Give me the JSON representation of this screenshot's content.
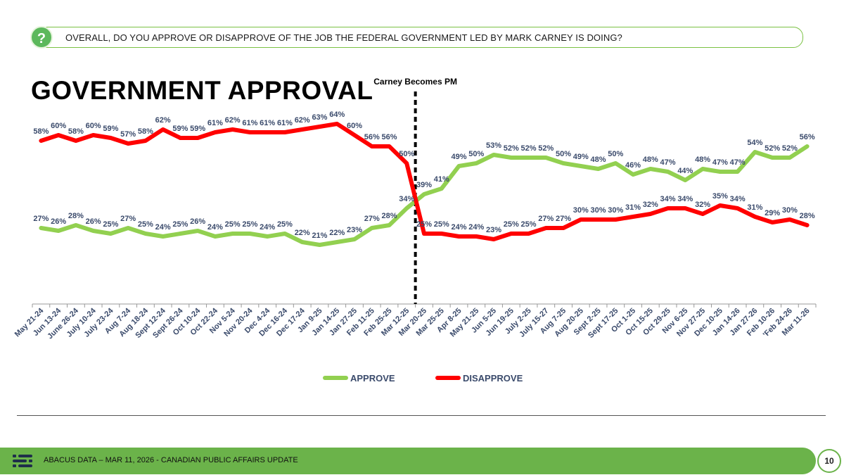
{
  "question": {
    "icon": "question-icon",
    "text": "OVERALL, DO YOU APPROVE OR DISAPPROVE OF THE JOB THE FEDERAL GOVERNMENT LED BY MARK CARNEY IS DOING?"
  },
  "title": "GOVERNMENT APPROVAL",
  "colors": {
    "approve": "#92d050",
    "disapprove": "#ff0000",
    "accent": "#6bb34a",
    "label": "#3a4a6b"
  },
  "chart_data": {
    "type": "line",
    "title": "GOVERNMENT APPROVAL",
    "categories": [
      "May 21-24",
      "Jun 13-24",
      "June 26-24",
      "July 10-24",
      "July 23-24",
      "Aug 7-24",
      "Aug 18-24",
      "Sept 12-24",
      "Sept 26-24",
      "Oct 10-24",
      "Oct 22-24",
      "Nov 5-24",
      "Nov 20-24",
      "Dec 4-24",
      "Dec 16-24",
      "Dec 17-24",
      "Jan 9-25",
      "Jan 14-25",
      "Jan 27-25",
      "Feb 11-25",
      "Feb 25-25",
      "Mar 12-25",
      "Mar 20-25",
      "Mar 25-25",
      "Apr 8-25",
      "May 21-25",
      "Jun 5-25",
      "Jun 19-25",
      "July 2-25",
      "July 15-27",
      "Aug 7-25",
      "Aug 20-25",
      "Sept 2-25",
      "Sept 17-25",
      "Oct 1-25",
      "Oct 15-25",
      "Oct 29-25",
      "Nov 6-25",
      "Nov 27-25",
      "Dec 10-25",
      "Jan 14-26",
      "Jan 27-26",
      "Feb 10-26",
      "'Feb 24-26",
      "Mar 11-26"
    ],
    "series": [
      {
        "name": "APPROVE",
        "color": "#92d050",
        "values": [
          27,
          26,
          28,
          26,
          25,
          27,
          25,
          24,
          25,
          26,
          24,
          25,
          25,
          24,
          25,
          22,
          21,
          22,
          23,
          27,
          28,
          34,
          39,
          41,
          49,
          50,
          53,
          52,
          52,
          52,
          50,
          49,
          48,
          50,
          46,
          48,
          47,
          44,
          48,
          47,
          47,
          54,
          52,
          52,
          56
        ]
      },
      {
        "name": "DISAPPROVE",
        "color": "#ff0000",
        "values": [
          58,
          60,
          58,
          60,
          59,
          57,
          58,
          62,
          59,
          59,
          61,
          62,
          61,
          61,
          61,
          62,
          63,
          64,
          60,
          56,
          56,
          50,
          25,
          25,
          24,
          24,
          23,
          25,
          25,
          27,
          27,
          30,
          30,
          30,
          31,
          32,
          34,
          34,
          32,
          35,
          34,
          31,
          29,
          30,
          28
        ]
      }
    ],
    "ylim": [
      0,
      80
    ],
    "annotation": {
      "label": "Carney Becomes PM",
      "at_category": "Mar 12-25"
    },
    "legend": [
      "APPROVE",
      "DISAPPROVE"
    ],
    "legend_position": "bottom"
  },
  "footer": {
    "text": "ABACUS DATA – MAR 11, 2026 - CANADIAN PUBLIC AFFAIRS UPDATE",
    "page": "10"
  }
}
